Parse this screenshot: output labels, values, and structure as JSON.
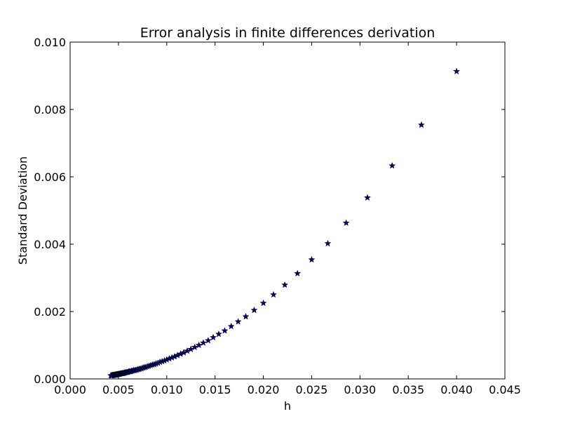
{
  "chart_data": {
    "type": "scatter",
    "title": "Error analysis in finite differences derivation",
    "xlabel": "h",
    "ylabel": "Standard Deviation",
    "xlim": [
      0.0,
      0.045
    ],
    "ylim": [
      0.0,
      0.01
    ],
    "x_ticks": [
      "0.000",
      "0.005",
      "0.010",
      "0.015",
      "0.020",
      "0.025",
      "0.030",
      "0.035",
      "0.040",
      "0.045"
    ],
    "y_ticks": [
      "0.000",
      "0.002",
      "0.004",
      "0.006",
      "0.008",
      "0.010"
    ],
    "grid": false,
    "marker": "star",
    "marker_color": "#00007f",
    "series": [
      {
        "x": [
          0.04,
          0.03636,
          0.03333,
          0.03077,
          0.02857,
          0.02667,
          0.025,
          0.02353,
          0.02222,
          0.02105,
          0.02,
          0.01905,
          0.01818,
          0.01739,
          0.01667,
          0.016,
          0.01538,
          0.01481,
          0.01429,
          0.01379,
          0.01333,
          0.0129,
          0.0125,
          0.01212,
          0.01176,
          0.01143,
          0.01111,
          0.01081,
          0.01053,
          0.01026,
          0.01,
          0.00976,
          0.00952,
          0.0093,
          0.00909,
          0.00889,
          0.0087,
          0.00851,
          0.00833,
          0.00816,
          0.008,
          0.00784,
          0.00769,
          0.00755,
          0.00741,
          0.00727,
          0.00714,
          0.00702,
          0.0069,
          0.00678,
          0.00667,
          0.00656,
          0.00645,
          0.00635,
          0.00625,
          0.00615,
          0.00606,
          0.00597,
          0.00588,
          0.0058,
          0.00571,
          0.00563,
          0.00556,
          0.00548,
          0.00541,
          0.00533,
          0.00526,
          0.00519,
          0.00513,
          0.00506,
          0.005,
          0.00494,
          0.00488,
          0.00482,
          0.00476,
          0.00471,
          0.00465,
          0.0046,
          0.00455,
          0.00449,
          0.00444,
          0.0044,
          0.00435,
          0.0043,
          0.00426,
          0.00421
        ],
        "y": [
          0.00913,
          0.00754,
          0.00633,
          0.00538,
          0.00463,
          0.00402,
          0.00354,
          0.00313,
          0.00279,
          0.0025,
          0.00225,
          0.00204,
          0.00185,
          0.0017,
          0.00156,
          0.00143,
          0.00133,
          0.00123,
          0.00114,
          0.00107,
          0.001,
          0.00094,
          0.00088,
          0.00083,
          0.00078,
          0.00074,
          0.0007,
          0.00066,
          0.00063,
          0.0006,
          0.00057,
          0.00054,
          0.00052,
          0.0005,
          0.00047,
          0.00045,
          0.00043,
          0.00042,
          0.0004,
          0.00038,
          0.00037,
          0.00035,
          0.00034,
          0.00033,
          0.00031,
          0.0003,
          0.00029,
          0.00028,
          0.00027,
          0.00026,
          0.00025,
          0.00025,
          0.00024,
          0.00023,
          0.00022,
          0.00022,
          0.00021,
          0.0002,
          0.0002,
          0.00019,
          0.00019,
          0.00018,
          0.00017,
          0.00017,
          0.00016,
          0.00016,
          0.00016,
          0.00015,
          0.00015,
          0.00014,
          0.00014,
          0.00014,
          0.00013,
          0.00013,
          0.00013,
          0.00012,
          0.00012,
          0.00012,
          0.00011,
          0.00011,
          0.00011,
          0.00011,
          0.0001,
          0.0001,
          0.0001,
          0.0001
        ]
      }
    ]
  }
}
